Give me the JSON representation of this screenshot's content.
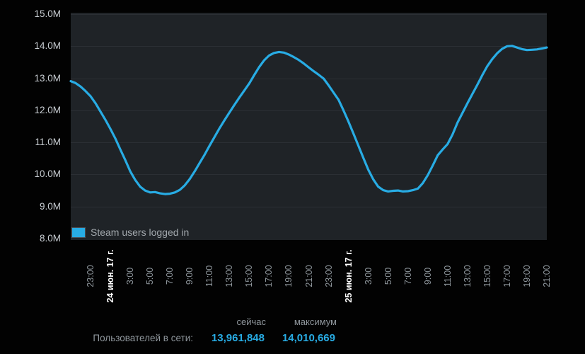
{
  "page": {
    "background": "#020202",
    "plot_background": "#1f2327",
    "grid_color": "#2b2f34",
    "accent_color": "#28ace4"
  },
  "chart_data": {
    "type": "line",
    "legend": "Steam users logged in",
    "legend_position": "bottom-left-inside",
    "grid": "horizontal-only",
    "xlim_hours": [
      0,
      48
    ],
    "ylim": [
      8,
      15
    ],
    "ylabel": "",
    "xlabel": "",
    "y_ticks": [
      {
        "v": 15,
        "label": "15.0M"
      },
      {
        "v": 14,
        "label": "14.0M"
      },
      {
        "v": 13,
        "label": "13.0M"
      },
      {
        "v": 12,
        "label": "12.0M"
      },
      {
        "v": 11,
        "label": "11.0M"
      },
      {
        "v": 10,
        "label": "10.0M"
      },
      {
        "v": 9,
        "label": "9.0M"
      },
      {
        "v": 8,
        "label": "8.0M"
      }
    ],
    "x_ticks": [
      {
        "h": 2,
        "label": "23:00",
        "type": "time"
      },
      {
        "h": 4,
        "label": "24 июн. 17 г.",
        "type": "date"
      },
      {
        "h": 6,
        "label": "3:00",
        "type": "time"
      },
      {
        "h": 8,
        "label": "5:00",
        "type": "time"
      },
      {
        "h": 10,
        "label": "7:00",
        "type": "time"
      },
      {
        "h": 12,
        "label": "9:00",
        "type": "time"
      },
      {
        "h": 14,
        "label": "11:00",
        "type": "time"
      },
      {
        "h": 16,
        "label": "13:00",
        "type": "time"
      },
      {
        "h": 18,
        "label": "15:00",
        "type": "time"
      },
      {
        "h": 20,
        "label": "17:00",
        "type": "time"
      },
      {
        "h": 22,
        "label": "19:00",
        "type": "time"
      },
      {
        "h": 24,
        "label": "21:00",
        "type": "time"
      },
      {
        "h": 26,
        "label": "23:00",
        "type": "time"
      },
      {
        "h": 28,
        "label": "25 июн. 17 г.",
        "type": "date"
      },
      {
        "h": 30,
        "label": "3:00",
        "type": "time"
      },
      {
        "h": 32,
        "label": "5:00",
        "type": "time"
      },
      {
        "h": 34,
        "label": "7:00",
        "type": "time"
      },
      {
        "h": 36,
        "label": "9:00",
        "type": "time"
      },
      {
        "h": 38,
        "label": "11:00",
        "type": "time"
      },
      {
        "h": 40,
        "label": "13:00",
        "type": "time"
      },
      {
        "h": 42,
        "label": "15:00",
        "type": "time"
      },
      {
        "h": 44,
        "label": "17:00",
        "type": "time"
      },
      {
        "h": 46,
        "label": "19:00",
        "type": "time"
      },
      {
        "h": 48,
        "label": "21:00",
        "type": "time"
      }
    ],
    "series": [
      {
        "name": "Steam users logged in",
        "color": "#28ace4",
        "unit": "millions of users",
        "points": [
          [
            0,
            12.91
          ],
          [
            0.5,
            12.85
          ],
          [
            1,
            12.74
          ],
          [
            1.5,
            12.6
          ],
          [
            2,
            12.44
          ],
          [
            2.5,
            12.22
          ],
          [
            3,
            11.96
          ],
          [
            3.5,
            11.7
          ],
          [
            4,
            11.42
          ],
          [
            4.5,
            11.12
          ],
          [
            5,
            10.78
          ],
          [
            5.5,
            10.45
          ],
          [
            6,
            10.1
          ],
          [
            6.5,
            9.83
          ],
          [
            7,
            9.62
          ],
          [
            7.5,
            9.5
          ],
          [
            8,
            9.44
          ],
          [
            8.5,
            9.45
          ],
          [
            9,
            9.41
          ],
          [
            9.5,
            9.39
          ],
          [
            10,
            9.4
          ],
          [
            10.5,
            9.44
          ],
          [
            11,
            9.52
          ],
          [
            11.5,
            9.66
          ],
          [
            12,
            9.86
          ],
          [
            12.5,
            10.1
          ],
          [
            13,
            10.36
          ],
          [
            13.5,
            10.62
          ],
          [
            14,
            10.9
          ],
          [
            14.5,
            11.17
          ],
          [
            15,
            11.44
          ],
          [
            15.5,
            11.69
          ],
          [
            16,
            11.93
          ],
          [
            16.5,
            12.17
          ],
          [
            17,
            12.4
          ],
          [
            17.5,
            12.62
          ],
          [
            18,
            12.84
          ],
          [
            18.5,
            13.1
          ],
          [
            19,
            13.35
          ],
          [
            19.5,
            13.56
          ],
          [
            20,
            13.71
          ],
          [
            20.5,
            13.79
          ],
          [
            21,
            13.82
          ],
          [
            21.5,
            13.8
          ],
          [
            22,
            13.74
          ],
          [
            22.5,
            13.66
          ],
          [
            23,
            13.57
          ],
          [
            23.5,
            13.46
          ],
          [
            24,
            13.34
          ],
          [
            24.5,
            13.22
          ],
          [
            25,
            13.11
          ],
          [
            25.5,
            12.99
          ],
          [
            26,
            12.78
          ],
          [
            26.5,
            12.55
          ],
          [
            27,
            12.33
          ],
          [
            27.5,
            12.0
          ],
          [
            28,
            11.65
          ],
          [
            28.5,
            11.28
          ],
          [
            29,
            10.9
          ],
          [
            29.5,
            10.52
          ],
          [
            30,
            10.15
          ],
          [
            30.5,
            9.85
          ],
          [
            31,
            9.62
          ],
          [
            31.5,
            9.51
          ],
          [
            32,
            9.47
          ],
          [
            32.5,
            9.49
          ],
          [
            33,
            9.5
          ],
          [
            33.5,
            9.47
          ],
          [
            34,
            9.48
          ],
          [
            34.5,
            9.51
          ],
          [
            35,
            9.56
          ],
          [
            35.5,
            9.73
          ],
          [
            36,
            9.98
          ],
          [
            36.5,
            10.28
          ],
          [
            37,
            10.6
          ],
          [
            37.5,
            10.78
          ],
          [
            38,
            10.95
          ],
          [
            38.5,
            11.25
          ],
          [
            39,
            11.62
          ],
          [
            39.5,
            11.92
          ],
          [
            40,
            12.22
          ],
          [
            40.5,
            12.51
          ],
          [
            41,
            12.8
          ],
          [
            41.5,
            13.1
          ],
          [
            42,
            13.38
          ],
          [
            42.5,
            13.6
          ],
          [
            43,
            13.78
          ],
          [
            43.5,
            13.92
          ],
          [
            44,
            14.0
          ],
          [
            44.5,
            14.01
          ],
          [
            45,
            13.96
          ],
          [
            45.5,
            13.91
          ],
          [
            46,
            13.88
          ],
          [
            46.5,
            13.89
          ],
          [
            47,
            13.9
          ],
          [
            47.5,
            13.93
          ],
          [
            48,
            13.96
          ]
        ]
      }
    ]
  },
  "stats": {
    "row_label": "Пользователей в сети:",
    "col_now": "сейчас",
    "col_max": "максимум",
    "now_value": "13,961,848",
    "max_value": "14,010,669",
    "value_color": "#28ace4",
    "label_color": "#8f969c"
  }
}
